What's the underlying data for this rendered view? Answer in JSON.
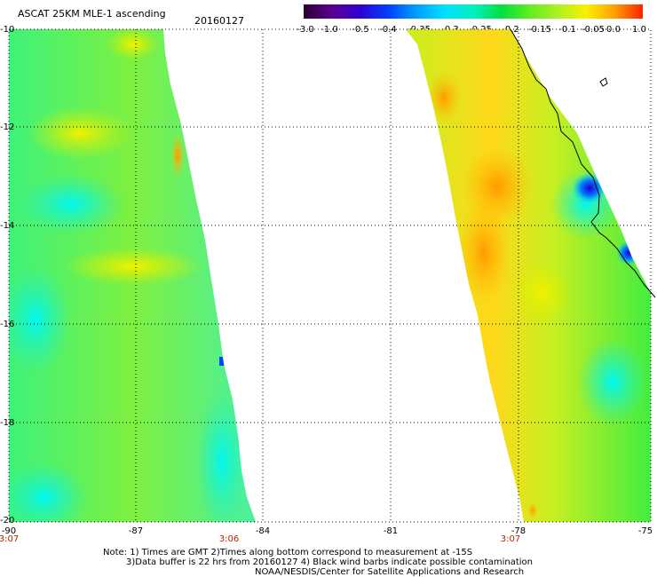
{
  "title": "ASCAT 25KM MLE-1 ascending",
  "date": "20160127",
  "colorbar": {
    "labels": [
      "-3.0",
      "-1.0",
      "-0.5",
      "-0.4",
      "-0.35",
      "-0.3",
      "-0.25",
      "-0.2",
      "-0.15",
      "-0.1",
      "-0.05",
      "0.0",
      "1.0"
    ],
    "colors": [
      "#2a0030",
      "#5a0090",
      "#3000d0",
      "#0040ff",
      "#00a0ff",
      "#00e0ff",
      "#00f0c0",
      "#00e040",
      "#60ee20",
      "#b0f020",
      "#f8f000",
      "#ffa000",
      "#ff2000"
    ]
  },
  "lat_labels": [
    "-10",
    "-12",
    "-14",
    "-16",
    "-18",
    "-20"
  ],
  "lon_labels": [
    "-90",
    "-87",
    "-84",
    "-81",
    "-78",
    "-75"
  ],
  "time_labels": [
    {
      "lon": "-90",
      "text": "3:07"
    },
    {
      "lon": "-84",
      "text": "3:06"
    },
    {
      "lon": "-78",
      "text": "3:07"
    }
  ],
  "notes": [
    "Note: 1) Times are GMT 2)Times along bottom correspond to measurement at -15S",
    "3)Data buffer is 22 hrs from 20160127 4) Black wind barbs indicate possible contamination",
    "NOAA/NESDIS/Center for Satellite Applications and Research"
  ]
}
